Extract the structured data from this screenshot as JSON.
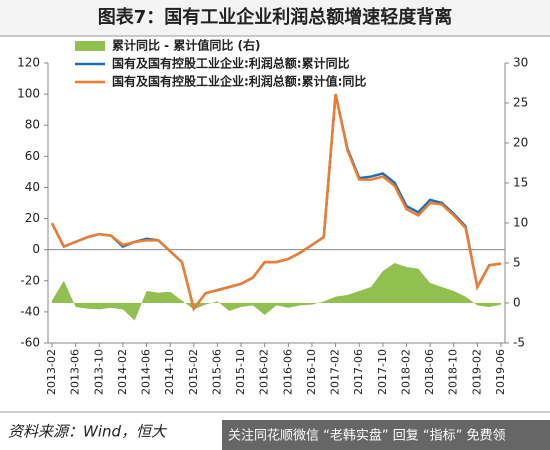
{
  "chart_data": {
    "type": "line",
    "title": "图表7：国有工业企业利润总额增速轻度背离",
    "source": "资料来源：Wind，恒大",
    "watermark": "关注同花顺微信 “老韩实盘” 回复 “指标” 免费领",
    "categories": [
      "2013-02",
      null,
      "2013-06",
      null,
      "2013-10",
      null,
      "2014-02",
      null,
      "2014-06",
      null,
      "2014-10",
      null,
      "2015-02",
      null,
      "2015-06",
      null,
      "2015-10",
      null,
      "2016-02",
      null,
      "2016-06",
      null,
      "2016-10",
      null,
      "2017-02",
      null,
      "2017-06",
      null,
      "2017-10",
      null,
      "2018-02",
      null,
      "2018-06",
      null,
      "2018-10",
      null,
      "2019-02",
      null,
      "2019-06"
    ],
    "series": [
      {
        "name": "累计同比 - 累计值同比 (右)",
        "type": "area",
        "axis": "y2",
        "color": "#92c050",
        "values": [
          0.3,
          2.8,
          -0.5,
          -0.7,
          -0.8,
          -0.6,
          -0.8,
          -2.2,
          1.5,
          1.3,
          1.4,
          0.3,
          -0.8,
          -0.2,
          0.2,
          -1,
          -0.5,
          -0.3,
          -1.5,
          -0.3,
          -0.6,
          -0.3,
          -0.2,
          0.2,
          0.8,
          1,
          1.5,
          2,
          4,
          5,
          4.5,
          4.3,
          2.5,
          2,
          1.5,
          0.8,
          -0.3,
          -0.5,
          -0.2
        ]
      },
      {
        "name": "国有及国有控股工业企业:利润总额:累计同比",
        "type": "line",
        "color": "#1f6fb8",
        "values": [
          17,
          2,
          5,
          8,
          10,
          9,
          2,
          5,
          7,
          6,
          -1,
          -8,
          -38,
          -28,
          -26,
          -24,
          -22,
          -18,
          -8,
          -8,
          -6,
          -2,
          3,
          8,
          100,
          65,
          46,
          47,
          49,
          43,
          28,
          24,
          32,
          30,
          23,
          15,
          -24,
          -10,
          -9
        ]
      },
      {
        "name": "国有及国有控股工业企业:利润总额:累计值:同比",
        "type": "line",
        "color": "#ed7d31",
        "values": [
          17,
          2,
          5,
          8,
          10,
          9,
          3,
          5,
          6,
          6,
          -1,
          -8,
          -38,
          -28,
          -26,
          -24,
          -22,
          -18,
          -8,
          -8,
          -6,
          -2,
          3,
          8,
          100,
          64,
          45,
          45,
          47,
          41,
          26,
          22,
          30,
          29,
          22,
          14,
          -24,
          -10,
          -9
        ]
      }
    ],
    "ylim": [
      -60,
      120
    ],
    "yticks": [
      -60,
      -40,
      -20,
      0,
      20,
      40,
      60,
      80,
      100,
      120
    ],
    "y2lim": [
      -5,
      30
    ],
    "y2ticks": [
      -5,
      0,
      5,
      10,
      15,
      20,
      25,
      30
    ]
  }
}
